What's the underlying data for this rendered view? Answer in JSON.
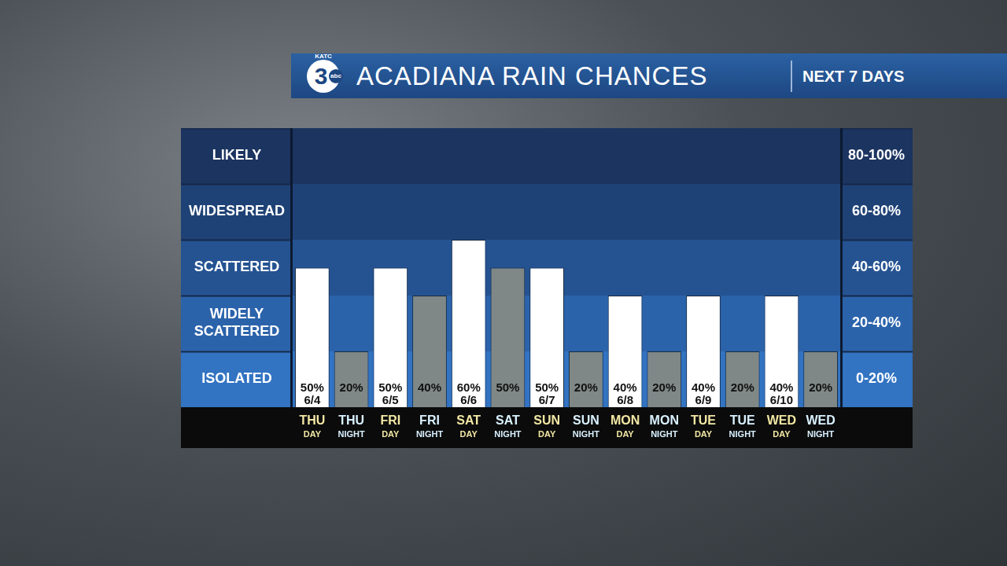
{
  "chart_data": {
    "type": "bar",
    "title": "ACADIANA RAIN CHANCES",
    "subtitle": "NEXT 7 DAYS",
    "logo": {
      "station": "KATC",
      "channel": "3",
      "network": "abc"
    },
    "categories": [
      "THU DAY",
      "THU NIGHT",
      "FRI DAY",
      "FRI NIGHT",
      "SAT DAY",
      "SAT NIGHT",
      "SUN DAY",
      "SUN NIGHT",
      "MON DAY",
      "MON NIGHT",
      "TUE DAY",
      "TUE NIGHT",
      "WED DAY",
      "WED NIGHT"
    ],
    "values": [
      50,
      20,
      50,
      40,
      60,
      50,
      50,
      20,
      40,
      20,
      40,
      20,
      40,
      20
    ],
    "value_labels": [
      "50%",
      "20%",
      "50%",
      "40%",
      "60%",
      "50%",
      "50%",
      "20%",
      "40%",
      "20%",
      "40%",
      "20%",
      "40%",
      "20%"
    ],
    "dates": [
      "6/4",
      null,
      "6/5",
      null,
      "6/6",
      null,
      "6/7",
      null,
      "6/8",
      null,
      "6/9",
      null,
      "6/10",
      null
    ],
    "colors": [
      "#ffffff",
      "#7f8886",
      "#ffffff",
      "#7f8886",
      "#ffffff",
      "#7f8886",
      "#ffffff",
      "#7f8886",
      "#ffffff",
      "#7f8886",
      "#ffffff",
      "#7f8886",
      "#ffffff",
      "#7f8886"
    ],
    "data_labels": true,
    "grid": false,
    "ylim": [
      0,
      100
    ],
    "yticks": [
      {
        "value": 10,
        "label": "ISOLATED"
      },
      {
        "value": 30,
        "label": "WIDELY SCATTERED"
      },
      {
        "value": 50,
        "label": "SCATTERED"
      },
      {
        "value": 70,
        "label": "WIDESPREAD"
      },
      {
        "value": 90,
        "label": "LIKELY"
      }
    ],
    "y2lim": [
      0,
      100
    ],
    "y2ticks": [
      {
        "value": 10,
        "label": "0-20%"
      },
      {
        "value": 30,
        "label": "20-40%"
      },
      {
        "value": 50,
        "label": "40-60%"
      },
      {
        "value": 70,
        "label": "60-80%"
      },
      {
        "value": 90,
        "label": "80-100%"
      }
    ],
    "bands": [
      {
        "from": 0,
        "to": 20,
        "color": "#3273c2"
      },
      {
        "from": 20,
        "to": 40,
        "color": "#2b63ab"
      },
      {
        "from": 40,
        "to": 60,
        "color": "#255392"
      },
      {
        "from": 60,
        "to": 80,
        "color": "#1f4276"
      },
      {
        "from": 80,
        "to": 100,
        "color": "#1b3460"
      }
    ]
  }
}
